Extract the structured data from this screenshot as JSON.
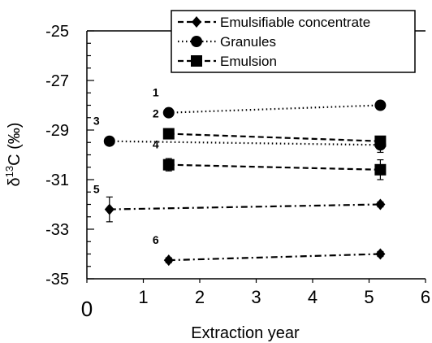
{
  "chart_data": {
    "type": "scatter",
    "xlabel": "Extraction year",
    "ylabel_main": "δ",
    "ylabel_sup": "13",
    "ylabel_rest": "C (‰)",
    "xlim": [
      0,
      6
    ],
    "ylim": [
      -35,
      -25
    ],
    "x_ticks": [
      "0",
      "1",
      "2",
      "3",
      "4",
      "5",
      "6"
    ],
    "y_ticks": [
      "-25",
      "-27",
      "-29",
      "-31",
      "-33",
      "-35"
    ],
    "legend_position": "top-right",
    "legend": [
      {
        "label": "Emulsifiable concentrate",
        "marker": "diamond",
        "dash": "dashed"
      },
      {
        "label": "Granules",
        "marker": "circle",
        "dash": "dotted"
      },
      {
        "label": "Emulsion",
        "marker": "square",
        "dash": "dashed"
      }
    ],
    "series": [
      {
        "label": "1",
        "marker": "circle",
        "dash": "dotted",
        "points": [
          {
            "x": 1.45,
            "y": -28.3,
            "err": 0.15
          },
          {
            "x": 5.2,
            "y": -28.0,
            "err": 0.1
          }
        ]
      },
      {
        "label": "2",
        "marker": "square",
        "dash": "dashed",
        "points": [
          {
            "x": 1.45,
            "y": -29.15,
            "err": 0.2
          },
          {
            "x": 5.2,
            "y": -29.45,
            "err": 0.15
          }
        ]
      },
      {
        "label": "3",
        "marker": "circle",
        "dash": "dotted",
        "points": [
          {
            "x": 0.4,
            "y": -29.45,
            "err": 0.1
          },
          {
            "x": 5.2,
            "y": -29.6,
            "err": 0.3
          }
        ]
      },
      {
        "label": "4",
        "marker": "square",
        "dash": "dashed",
        "points": [
          {
            "x": 1.45,
            "y": -30.4,
            "err": 0.25
          },
          {
            "x": 5.2,
            "y": -30.6,
            "err": 0.4
          }
        ]
      },
      {
        "label": "5",
        "marker": "diamond",
        "dash": "dashdot",
        "points": [
          {
            "x": 0.4,
            "y": -32.2,
            "err": 0.5
          },
          {
            "x": 5.2,
            "y": -32.0,
            "err": 0.1
          }
        ]
      },
      {
        "label": "6",
        "marker": "diamond",
        "dash": "dashdot",
        "points": [
          {
            "x": 1.45,
            "y": -34.25,
            "err": 0.1
          },
          {
            "x": 5.2,
            "y": -34.0,
            "err": 0.1
          }
        ]
      }
    ]
  }
}
